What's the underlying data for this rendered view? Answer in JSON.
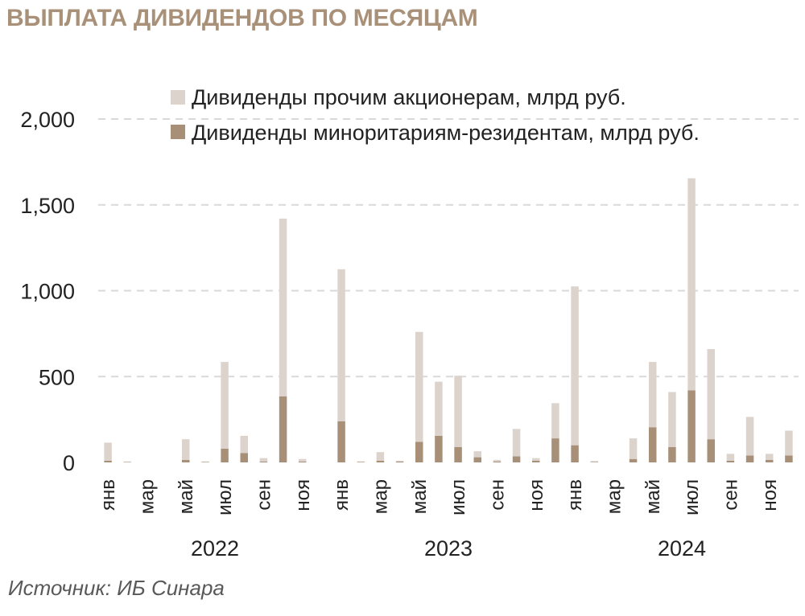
{
  "title": "ВЫПЛАТА ДИВИДЕНДОВ ПО МЕСЯЦАМ",
  "source": "Источник: ИБ Синара",
  "colors": {
    "title": "#a89178",
    "other_shareholders": "#ddd3cd",
    "minority_residents": "#a89078",
    "grid": "#d9d9d9"
  },
  "chart_data": {
    "type": "bar",
    "stacked": true,
    "grid": true,
    "legend_position": "top-right",
    "ylim": [
      0,
      2000
    ],
    "yticks": [
      0,
      500,
      1000,
      1500,
      2000
    ],
    "ytick_labels": [
      "0",
      "500",
      "1,000",
      "1,500",
      "2,000"
    ],
    "years": [
      "2022",
      "2023",
      "2024"
    ],
    "month_tick_labels": [
      "янв",
      "мар",
      "май",
      "июл",
      "сен",
      "ноя"
    ],
    "categories": [
      "янв 2022",
      "фев 2022",
      "мар 2022",
      "апр 2022",
      "май 2022",
      "июн 2022",
      "июл 2022",
      "авг 2022",
      "сен 2022",
      "окт 2022",
      "ноя 2022",
      "дек 2022",
      "янв 2023",
      "фев 2023",
      "мар 2023",
      "апр 2023",
      "май 2023",
      "июн 2023",
      "июл 2023",
      "авг 2023",
      "сен 2023",
      "окт 2023",
      "ноя 2023",
      "дек 2023",
      "янв 2024",
      "фев 2024",
      "мар 2024",
      "апр 2024",
      "май 2024",
      "июн 2024",
      "июл 2024",
      "авг 2024",
      "сен 2024",
      "окт 2024",
      "ноя 2024",
      "дек 2024"
    ],
    "series": [
      {
        "name": "Дивиденды миноритариям-резидентам, млрд руб.",
        "values": [
          10,
          2,
          0,
          0,
          15,
          3,
          80,
          55,
          5,
          385,
          5,
          0,
          240,
          3,
          10,
          5,
          120,
          155,
          90,
          30,
          5,
          35,
          10,
          140,
          100,
          3,
          0,
          20,
          205,
          90,
          420,
          135,
          10,
          40,
          15,
          40
        ]
      },
      {
        "name": "Дивиденды прочим акционерам, млрд руб.",
        "values": [
          105,
          3,
          0,
          0,
          120,
          2,
          505,
          100,
          20,
          1035,
          15,
          0,
          885,
          3,
          50,
          5,
          640,
          315,
          415,
          35,
          10,
          160,
          15,
          205,
          925,
          5,
          0,
          120,
          380,
          320,
          1235,
          525,
          40,
          225,
          35,
          145
        ]
      }
    ]
  }
}
